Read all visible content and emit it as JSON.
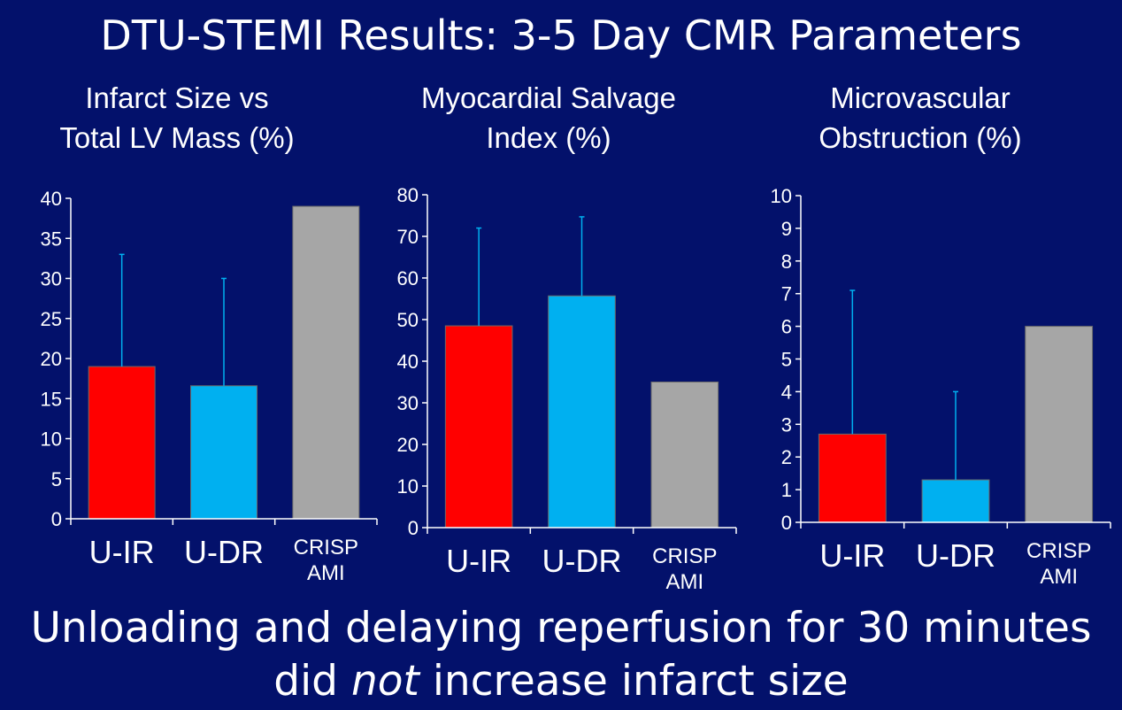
{
  "slide": {
    "title": "DTU-STEMI Results: 3-5 Day CMR Parameters",
    "footer_line1": "Unloading and delaying reperfusion for 30 minutes",
    "footer_line2_pre": "did ",
    "footer_line2_em": "not",
    "footer_line2_post": " increase infarct size"
  },
  "colors": {
    "background": "#03116b",
    "U-IR": "#ff0000",
    "U-DR": "#00b0f0",
    "CRISP AMI": "#a6a6a6",
    "error_bar": "#00b0f0",
    "axis": "#ffffff"
  },
  "chart_data": [
    {
      "type": "bar",
      "title_lines": [
        "Infarct Size vs",
        "Total LV Mass (%)"
      ],
      "categories": [
        [
          "U-IR"
        ],
        [
          "U-DR"
        ],
        [
          "CRISP",
          "AMI"
        ]
      ],
      "values": [
        19,
        16.6,
        39
      ],
      "error_upper": [
        33,
        30,
        null
      ],
      "ylim": [
        0,
        40
      ],
      "yticks": [
        0,
        5,
        10,
        15,
        20,
        25,
        30,
        35,
        40
      ]
    },
    {
      "type": "bar",
      "title_lines": [
        "Myocardial Salvage",
        "Index (%)"
      ],
      "categories": [
        [
          "U-IR"
        ],
        [
          "U-DR"
        ],
        [
          "CRISP",
          "AMI"
        ]
      ],
      "values": [
        48.5,
        55.7,
        35
      ],
      "error_upper": [
        72,
        74.7,
        null
      ],
      "ylim": [
        0,
        80
      ],
      "yticks": [
        0,
        10,
        20,
        30,
        40,
        50,
        60,
        70,
        80
      ]
    },
    {
      "type": "bar",
      "title_lines": [
        "Microvascular",
        "Obstruction (%)"
      ],
      "categories": [
        [
          "U-IR"
        ],
        [
          "U-DR"
        ],
        [
          "CRISP",
          "AMI"
        ]
      ],
      "values": [
        2.7,
        1.3,
        6
      ],
      "error_upper": [
        7.1,
        4,
        null
      ],
      "ylim": [
        0,
        10
      ],
      "yticks": [
        0,
        1,
        2,
        3,
        4,
        5,
        6,
        7,
        8,
        9,
        10
      ]
    }
  ]
}
